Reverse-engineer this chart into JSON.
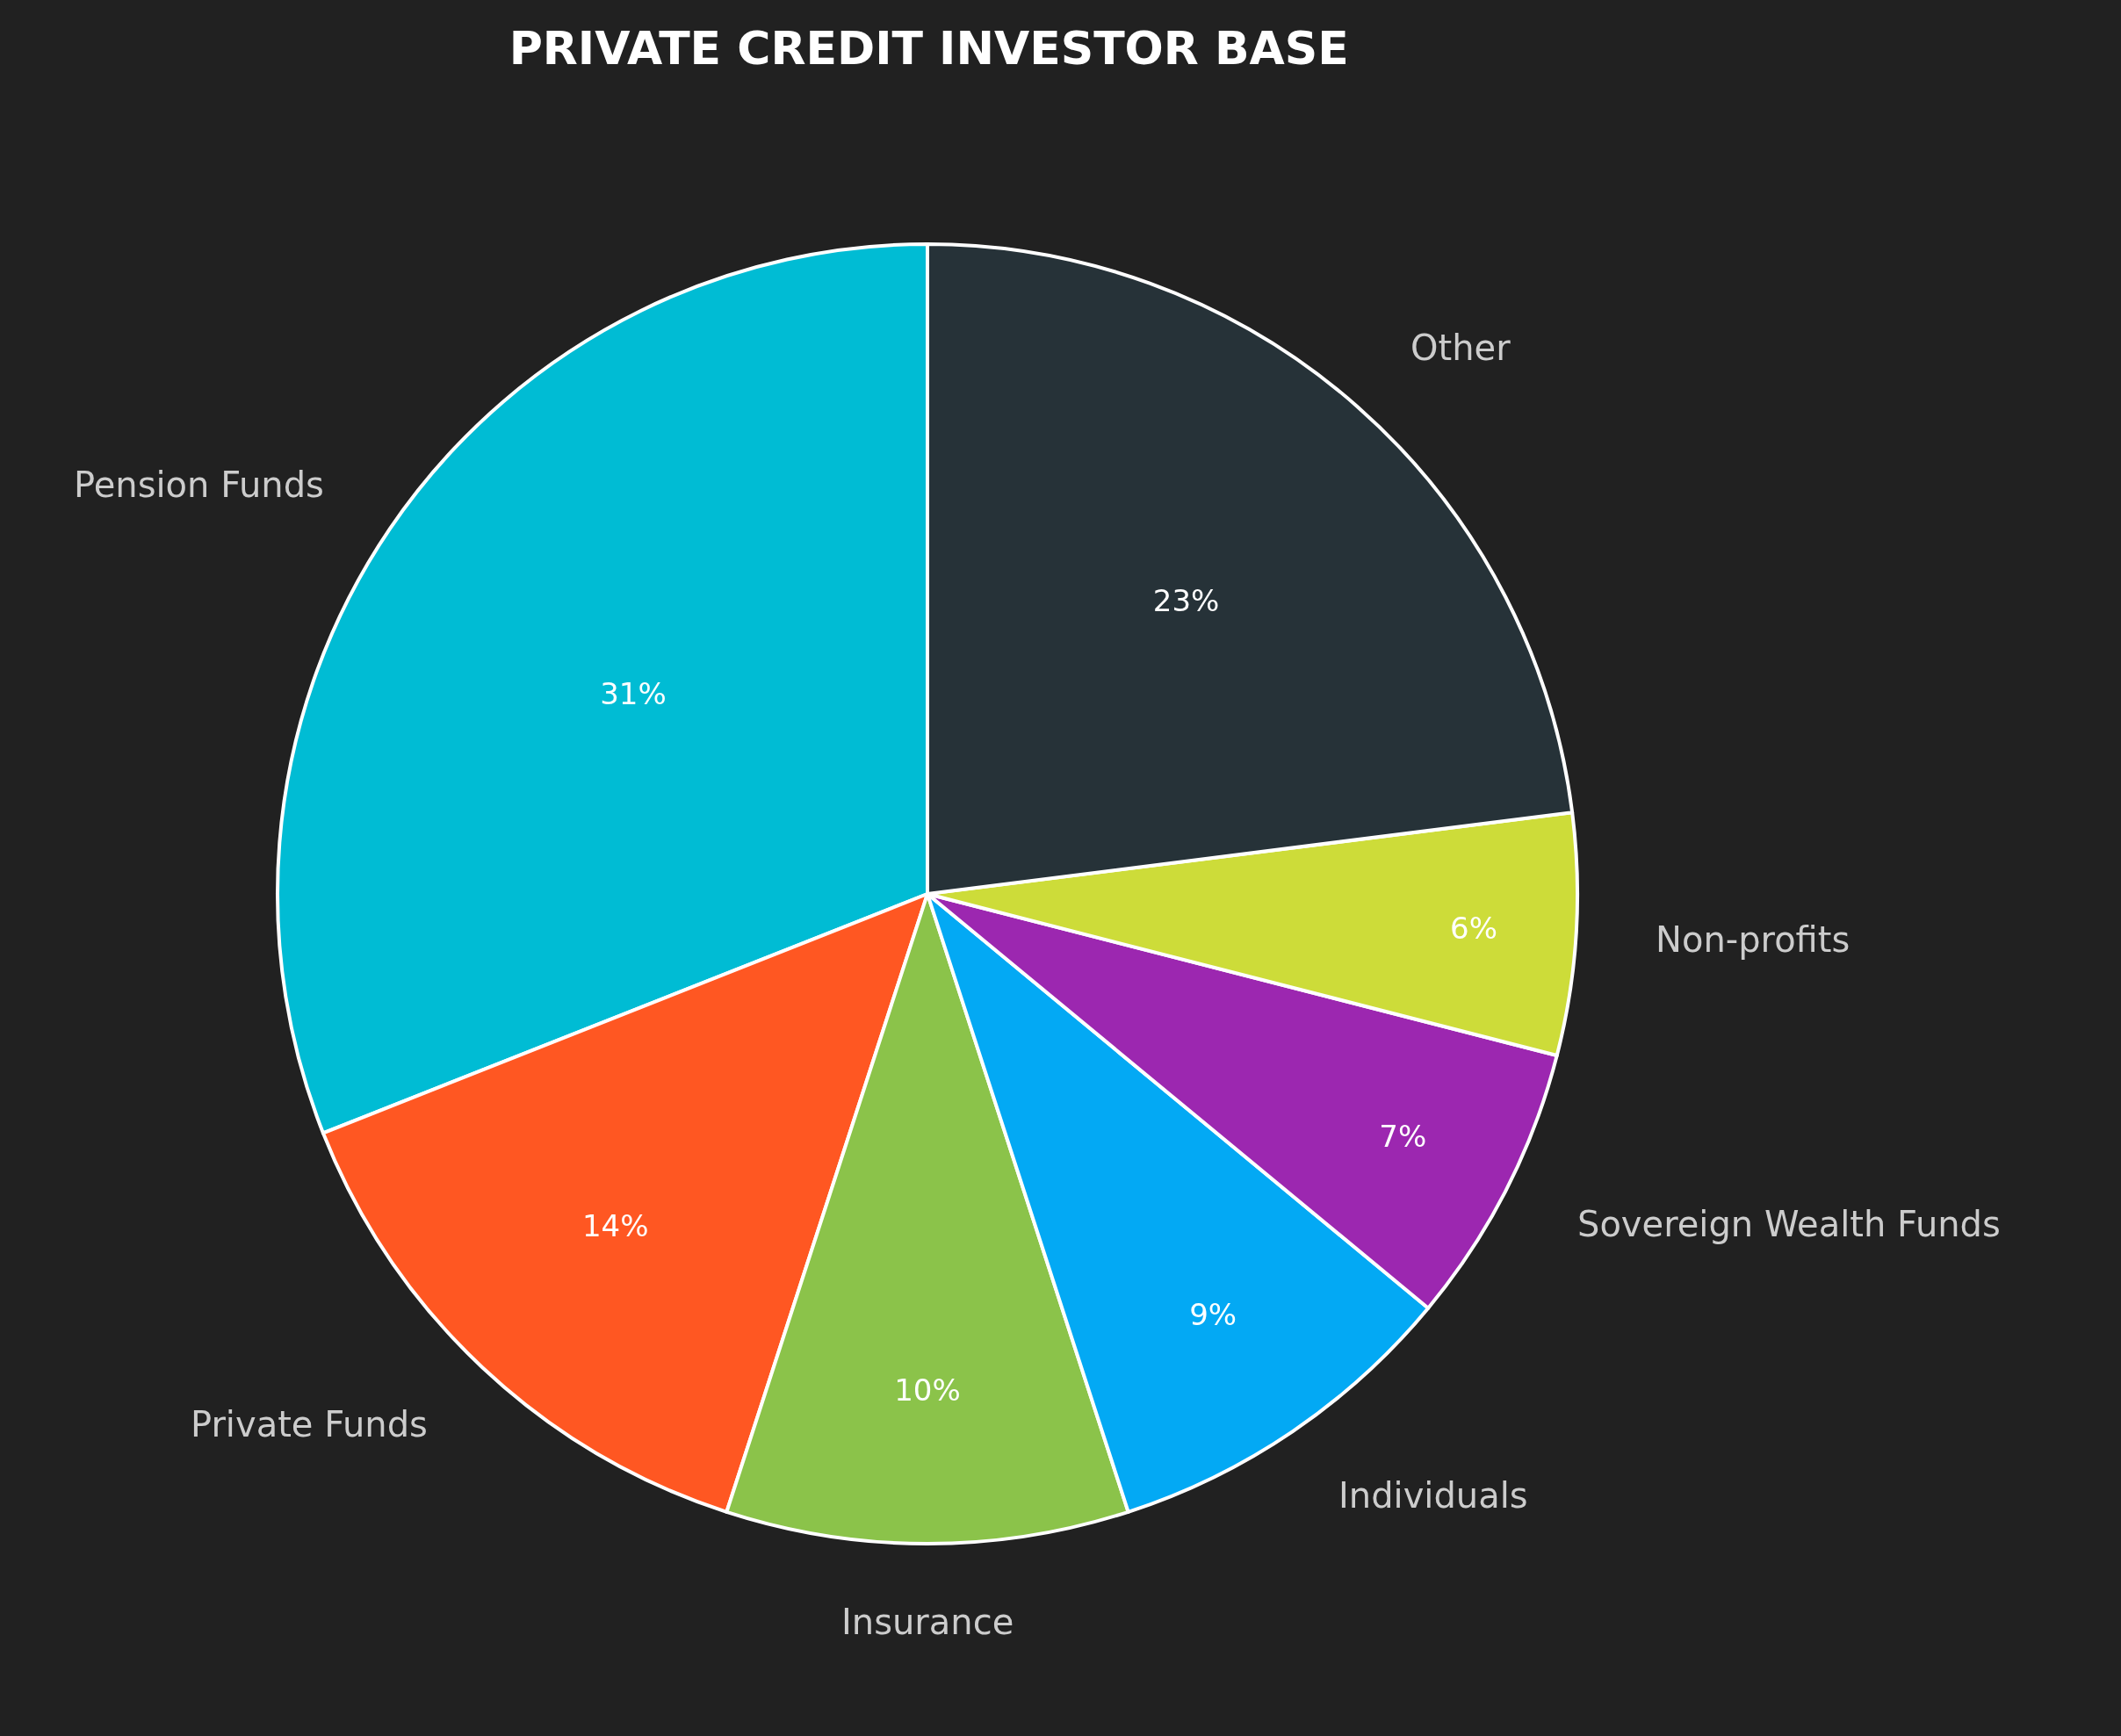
{
  "chart_data": {
    "type": "pie",
    "title": "PRIVATE CREDIT INVESTOR BASE",
    "categories": [
      "Pension Funds",
      "Private Funds",
      "Insurance",
      "Individuals",
      "Sovereign Wealth Funds",
      "Non-profits",
      "Other"
    ],
    "values": [
      31,
      14,
      10,
      9,
      7,
      6,
      23
    ],
    "colors": [
      "#00bcd4",
      "#ff5722",
      "#8bc34a",
      "#03a9f4",
      "#9c27b0",
      "#cddc39",
      "#263238"
    ],
    "value_labels": [
      "31%",
      "14%",
      "10%",
      "9%",
      "7%",
      "6%",
      "23%"
    ],
    "legend": false
  }
}
